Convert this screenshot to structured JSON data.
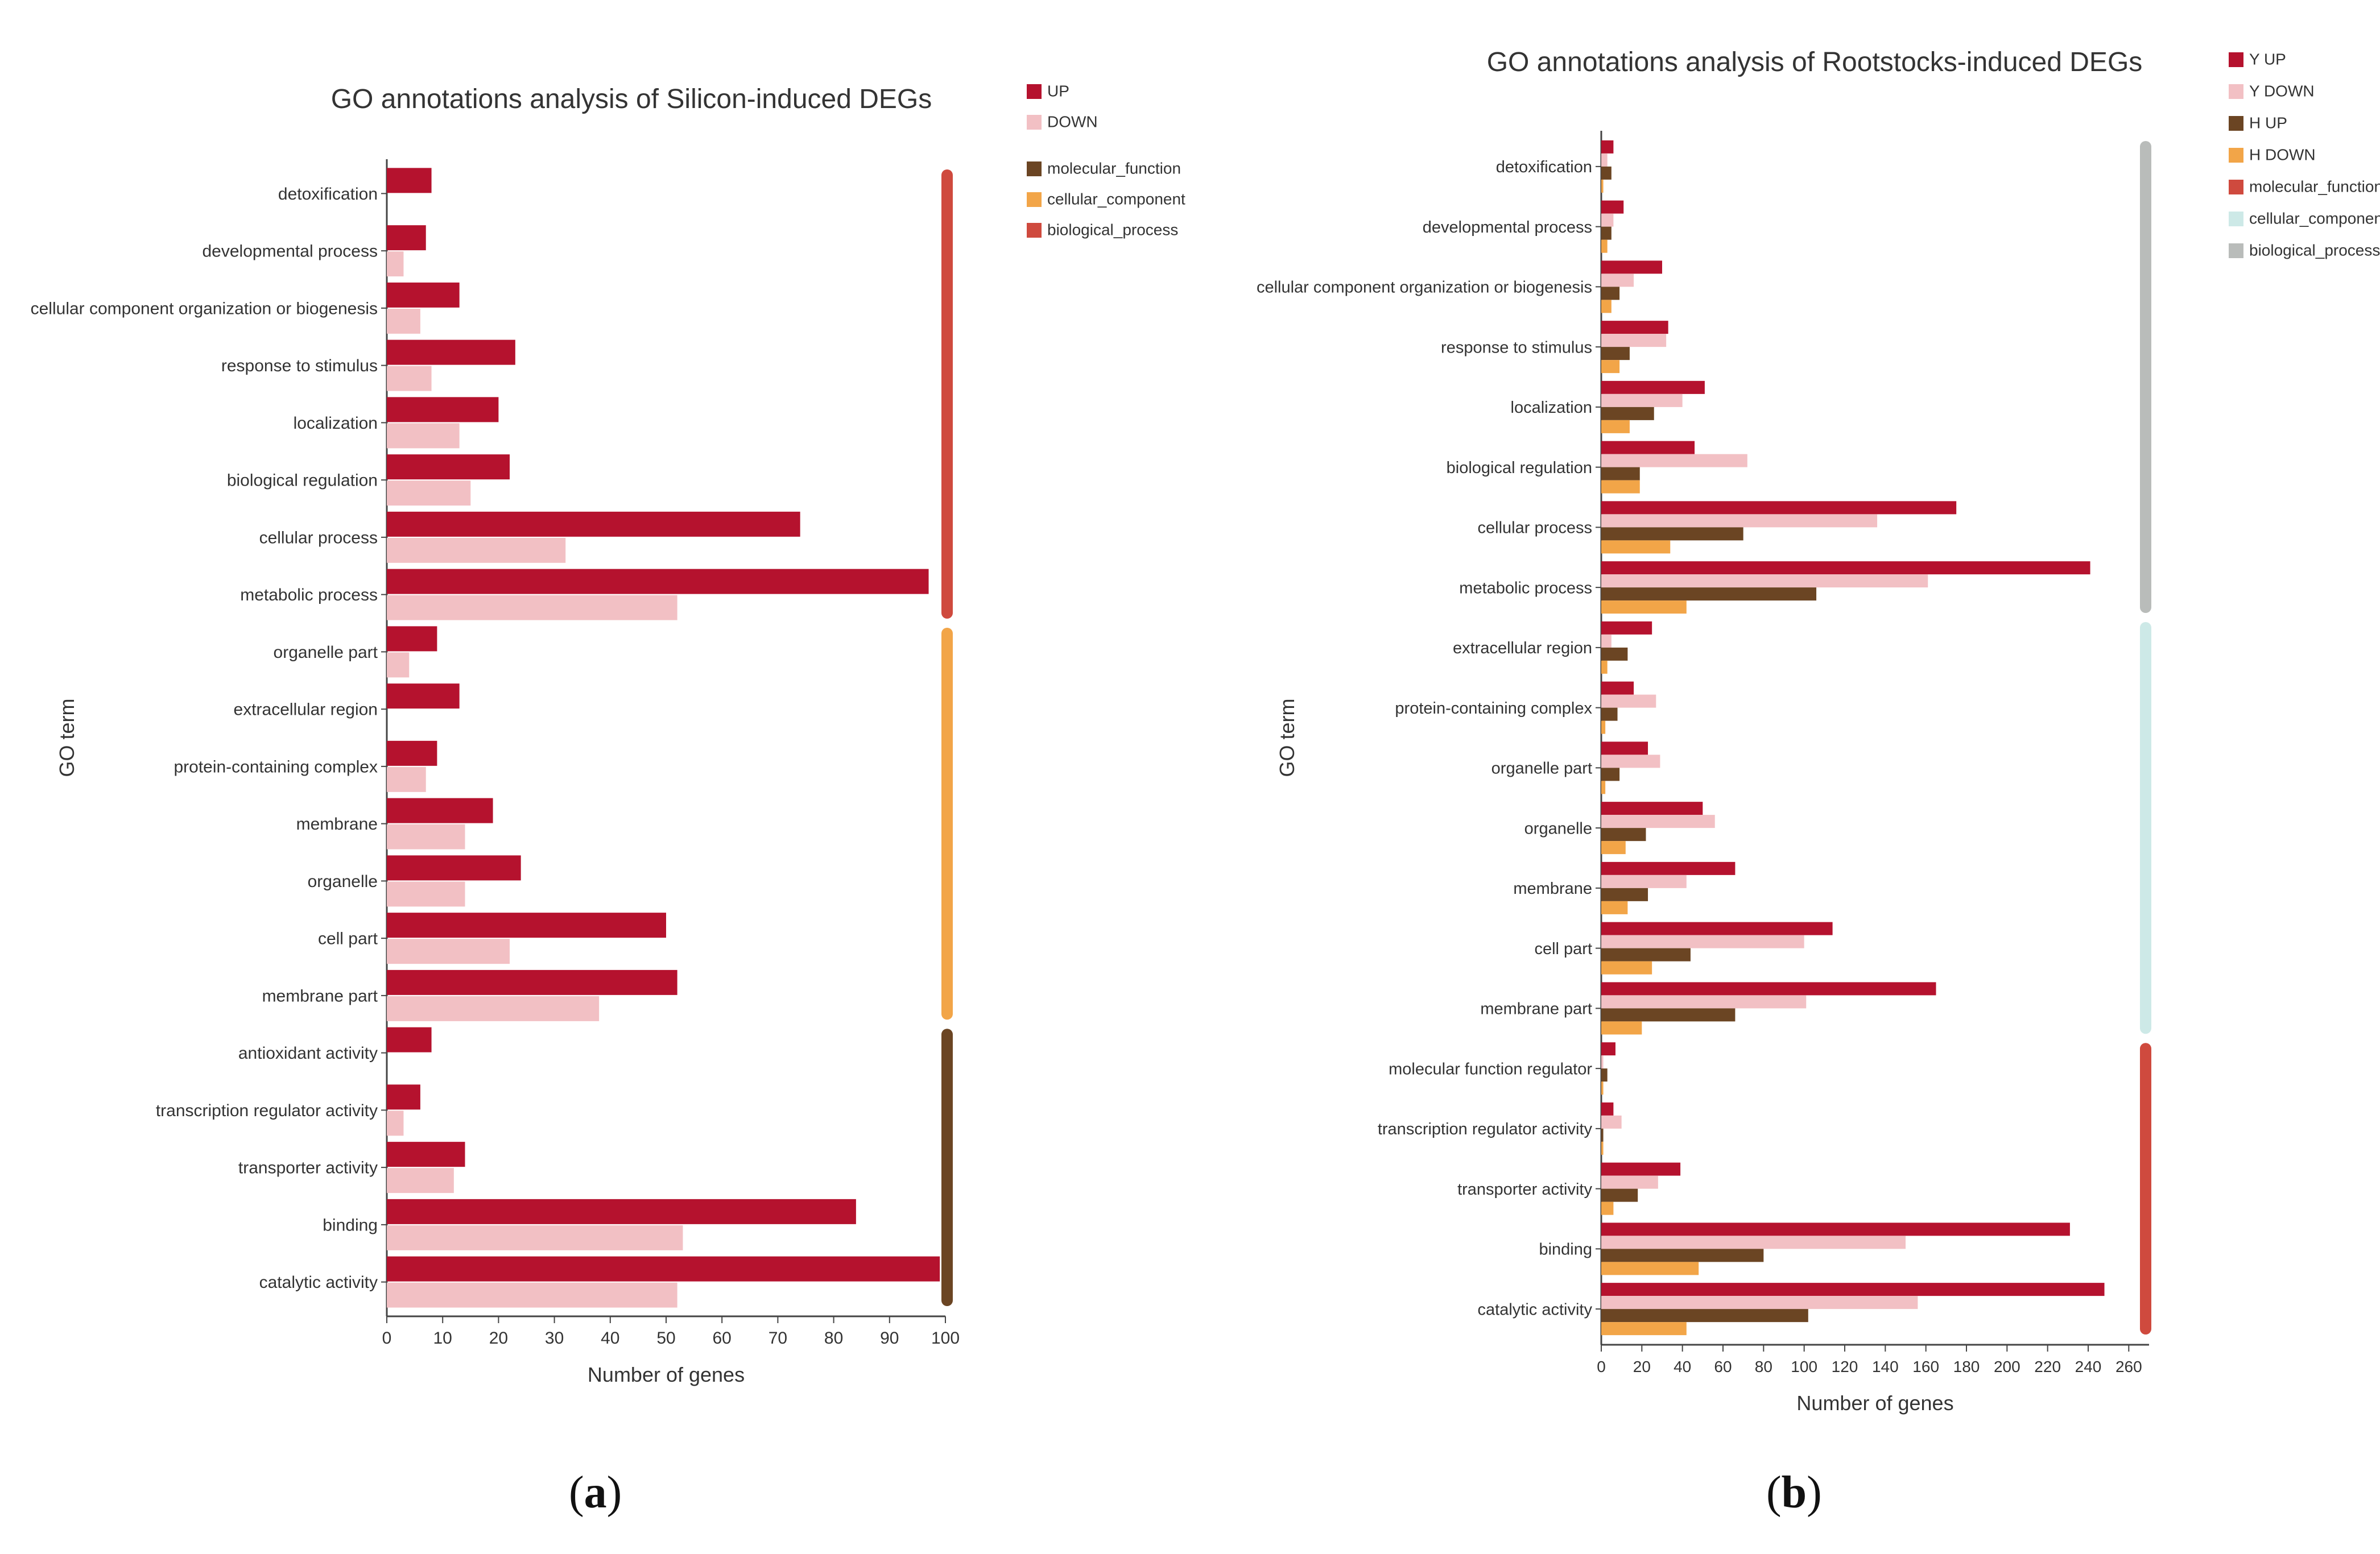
{
  "colors": {
    "up": "#b5122e",
    "down": "#f2c0c4",
    "h_up": "#6b4523",
    "h_down": "#f2a548",
    "molecular_function_a": "#6b4523",
    "cellular_component_a": "#f2a548",
    "biological_process_a": "#cf4a3e",
    "molecular_function_b": "#cf4a3e",
    "cellular_component_b": "#cde9e7",
    "biological_process_b": "#b9bcba",
    "axis": "#444444",
    "text": "#333333"
  },
  "captions": [
    {
      "letter": "a",
      "open": "(",
      "close": ")"
    },
    {
      "letter": "b",
      "open": "(",
      "close": ")"
    }
  ],
  "chart_data": [
    {
      "type": "bar",
      "orientation": "horizontal",
      "title": "GO annotations analysis of Silicon-induced DEGs",
      "xlabel": "Number of genes",
      "ylabel": "GO term",
      "xlim": [
        0,
        100
      ],
      "xticks": [
        0,
        10,
        20,
        30,
        40,
        50,
        60,
        70,
        80,
        90,
        100
      ],
      "categories": [
        "detoxification",
        "developmental process",
        "cellular component organization or biogenesis",
        "response to stimulus",
        "localization",
        "biological regulation",
        "cellular process",
        "metabolic process",
        "organelle part",
        "extracellular region",
        "protein-containing complex",
        "membrane",
        "organelle",
        "cell part",
        "membrane part",
        "antioxidant activity",
        "transcription regulator activity",
        "transporter activity",
        "binding",
        "catalytic activity"
      ],
      "series": [
        {
          "name": "UP",
          "color": "#b5122e",
          "values": [
            8,
            7,
            13,
            23,
            20,
            22,
            74,
            97,
            9,
            13,
            9,
            19,
            24,
            50,
            52,
            8,
            6,
            14,
            84,
            99
          ]
        },
        {
          "name": "DOWN",
          "color": "#f2c0c4",
          "values": [
            0,
            3,
            6,
            8,
            13,
            15,
            32,
            52,
            4,
            0,
            7,
            14,
            14,
            22,
            38,
            0,
            3,
            12,
            53,
            52
          ]
        }
      ],
      "groups": [
        {
          "name": "biological_process",
          "color": "#cf4a3e",
          "from": 0,
          "to": 7
        },
        {
          "name": "cellular_component",
          "color": "#f2a548",
          "from": 8,
          "to": 14
        },
        {
          "name": "molecular_function",
          "color": "#6b4523",
          "from": 15,
          "to": 19
        }
      ],
      "legend_series": [
        "UP",
        "DOWN"
      ],
      "legend_groups": [
        "molecular_function",
        "cellular_component",
        "biological_process"
      ],
      "legend_position": "top-right",
      "grid": false
    },
    {
      "type": "bar",
      "orientation": "horizontal",
      "title": "GO annotations analysis of Rootstocks-induced DEGs",
      "xlabel": "Number of genes",
      "ylabel": "GO term",
      "xlim": [
        0,
        270
      ],
      "xticks": [
        0,
        20,
        40,
        60,
        80,
        100,
        120,
        140,
        160,
        180,
        200,
        220,
        240,
        260
      ],
      "categories": [
        "detoxification",
        "developmental process",
        "cellular component organization or biogenesis",
        "response to stimulus",
        "localization",
        "biological regulation",
        "cellular process",
        "metabolic process",
        "extracellular region",
        "protein-containing complex",
        "organelle part",
        "organelle",
        "membrane",
        "cell part",
        "membrane part",
        "molecular function regulator",
        "transcription regulator activity",
        "transporter activity",
        "binding",
        "catalytic activity"
      ],
      "series": [
        {
          "name": "Y UP",
          "color": "#b5122e",
          "values": [
            6,
            11,
            30,
            33,
            51,
            46,
            175,
            241,
            25,
            16,
            23,
            50,
            66,
            114,
            165,
            7,
            6,
            39,
            231,
            248
          ]
        },
        {
          "name": "Y DOWN",
          "color": "#f2c0c4",
          "values": [
            3,
            6,
            16,
            32,
            40,
            72,
            136,
            161,
            5,
            27,
            29,
            56,
            42,
            100,
            101,
            1,
            10,
            28,
            150,
            156
          ]
        },
        {
          "name": "H UP",
          "color": "#6b4523",
          "values": [
            5,
            5,
            9,
            14,
            26,
            19,
            70,
            106,
            13,
            8,
            9,
            22,
            23,
            44,
            66,
            3,
            1,
            18,
            80,
            102
          ]
        },
        {
          "name": "H DOWN",
          "color": "#f2a548",
          "values": [
            1,
            3,
            5,
            9,
            14,
            19,
            34,
            42,
            3,
            2,
            2,
            12,
            13,
            25,
            20,
            1,
            1,
            6,
            48,
            42
          ]
        }
      ],
      "groups": [
        {
          "name": "biological_process",
          "color": "#b9bcba",
          "from": 0,
          "to": 7
        },
        {
          "name": "cellular_component",
          "color": "#cde9e7",
          "from": 8,
          "to": 14
        },
        {
          "name": "molecular_function",
          "color": "#cf4a3e",
          "from": 15,
          "to": 19
        }
      ],
      "legend_series": [
        "Y UP",
        "Y DOWN",
        "H UP",
        "H DOWN"
      ],
      "legend_groups": [
        "molecular_function",
        "cellular_component",
        "biological_process"
      ],
      "legend_position": "top-right",
      "grid": false
    }
  ]
}
